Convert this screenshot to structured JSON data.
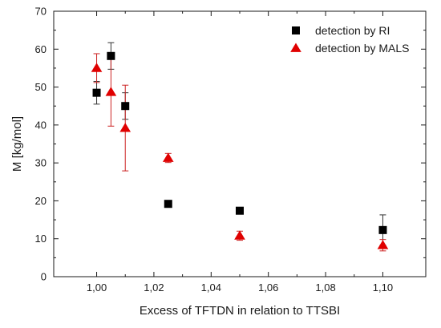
{
  "chart_data": {
    "type": "scatter",
    "title": "",
    "xlabel": "Excess of TFTDN in relation to TTSBI",
    "ylabel": "M [kg/mol]",
    "xlim": [
      0.985,
      1.115
    ],
    "ylim": [
      0,
      70
    ],
    "x_ticks": [
      1.0,
      1.02,
      1.04,
      1.06,
      1.08,
      1.1
    ],
    "x_tick_labels": [
      "1,00",
      "1,02",
      "1,04",
      "1,06",
      "1,08",
      "1,10"
    ],
    "y_ticks": [
      0,
      10,
      20,
      30,
      40,
      50,
      60,
      70
    ],
    "y_tick_labels": [
      "0",
      "10",
      "20",
      "30",
      "40",
      "50",
      "60",
      "70"
    ],
    "grid": false,
    "legend_position": "top-right",
    "series": [
      {
        "name": "detection by RI",
        "marker": "square",
        "color": "#000000",
        "points": [
          {
            "x": 1.0,
            "y": 48.5,
            "err": 3.0
          },
          {
            "x": 1.005,
            "y": 58.2,
            "err": 3.5
          },
          {
            "x": 1.01,
            "y": 45.0,
            "err": 3.5
          },
          {
            "x": 1.025,
            "y": 19.2,
            "err": 0.3
          },
          {
            "x": 1.05,
            "y": 17.4,
            "err": 0.3
          },
          {
            "x": 1.1,
            "y": 12.3,
            "err": 4.0
          }
        ]
      },
      {
        "name": "detection by MALS",
        "marker": "triangle",
        "color": "#e00000",
        "points": [
          {
            "x": 1.0,
            "y": 55.0,
            "err": 3.8
          },
          {
            "x": 1.005,
            "y": 48.7,
            "err": 9.0
          },
          {
            "x": 1.01,
            "y": 39.2,
            "err": 11.3
          },
          {
            "x": 1.025,
            "y": 31.3,
            "err": 1.2
          },
          {
            "x": 1.05,
            "y": 10.8,
            "err": 1.2
          },
          {
            "x": 1.1,
            "y": 8.3,
            "err": 1.5
          }
        ]
      }
    ]
  }
}
